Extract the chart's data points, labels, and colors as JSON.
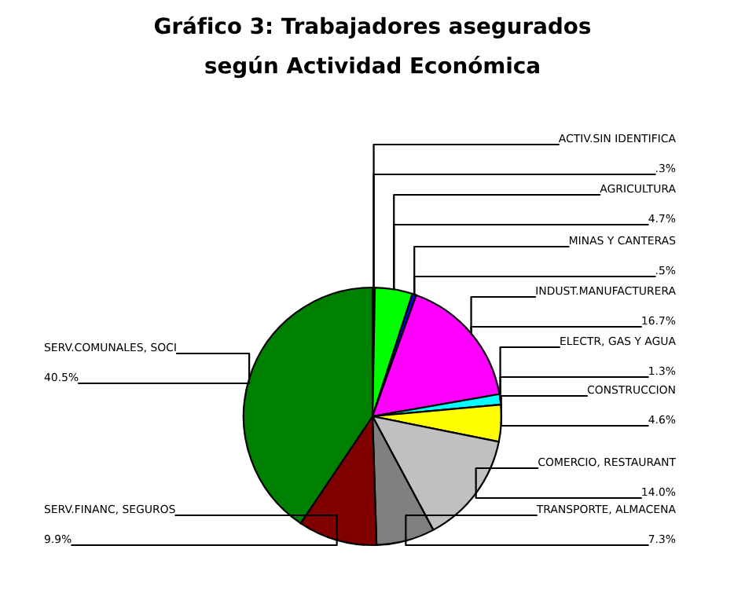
{
  "chart_data": {
    "type": "pie",
    "title": "Gráfico 3: Trabajadores asegurados\nsegún Actividad Económica",
    "categories": [
      "ACTIV.SIN IDENTIFICA",
      "AGRICULTURA",
      "MINAS Y CANTERAS",
      "INDUST.MANUFACTURERA",
      "ELECTR, GAS Y AGUA",
      "CONSTRUCCION",
      "COMERCIO, RESTAURANT",
      "TRANSPORTE, ALMACENA",
      "SERV.FINANC, SEGUROS",
      "SERV.COMUNALES, SOCI"
    ],
    "values": [
      0.3,
      4.7,
      0.5,
      16.7,
      1.3,
      4.6,
      14.0,
      7.3,
      9.9,
      40.5
    ],
    "value_labels": [
      ".3%",
      "4.7%",
      ".5%",
      "16.7%",
      "1.3%",
      "4.6%",
      "14.0%",
      "7.3%",
      "9.9%",
      "40.5%"
    ],
    "colors": [
      "#000080",
      "#00ff00",
      "#0000ff",
      "#ff00ff",
      "#00ffff",
      "#ffff00",
      "#c0c0c0",
      "#808080",
      "#800000",
      "#008000"
    ],
    "legend": false
  }
}
